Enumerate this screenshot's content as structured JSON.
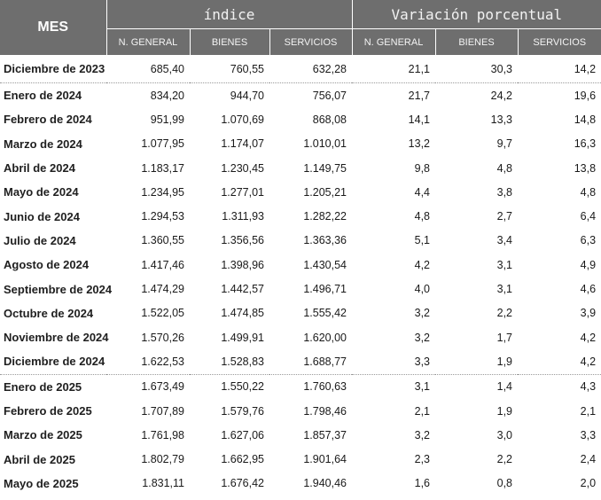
{
  "header": {
    "mes": "MES",
    "group_indice": "índice",
    "group_variacion": "Variación porcentual",
    "sub_indice": [
      "N. GENERAL",
      "BIENES",
      "SERVICIOS"
    ],
    "sub_variacion": [
      "N. GENERAL",
      "BIENES",
      "SERVICIOS"
    ]
  },
  "rows": [
    [
      "Diciembre de 2023",
      "685,40",
      "760,55",
      "632,28",
      "21,1",
      "30,3",
      "14,2"
    ],
    [
      "Enero de 2024",
      "834,20",
      "944,70",
      "756,07",
      "21,7",
      "24,2",
      "19,6"
    ],
    [
      "Febrero de 2024",
      "951,99",
      "1.070,69",
      "868,08",
      "14,1",
      "13,3",
      "14,8"
    ],
    [
      "Marzo de 2024",
      "1.077,95",
      "1.174,07",
      "1.010,01",
      "13,2",
      "9,7",
      "16,3"
    ],
    [
      "Abril de 2024",
      "1.183,17",
      "1.230,45",
      "1.149,75",
      "9,8",
      "4,8",
      "13,8"
    ],
    [
      "Mayo de 2024",
      "1.234,95",
      "1.277,01",
      "1.205,21",
      "4,4",
      "3,8",
      "4,8"
    ],
    [
      "Junio de 2024",
      "1.294,53",
      "1.311,93",
      "1.282,22",
      "4,8",
      "2,7",
      "6,4"
    ],
    [
      "Julio de 2024",
      "1.360,55",
      "1.356,56",
      "1.363,36",
      "5,1",
      "3,4",
      "6,3"
    ],
    [
      "Agosto de 2024",
      "1.417,46",
      "1.398,96",
      "1.430,54",
      "4,2",
      "3,1",
      "4,9"
    ],
    [
      "Septiembre de 2024",
      "1.474,29",
      "1.442,57",
      "1.496,71",
      "4,0",
      "3,1",
      "4,6"
    ],
    [
      "Octubre de 2024",
      "1.522,05",
      "1.474,85",
      "1.555,42",
      "3,2",
      "2,2",
      "3,9"
    ],
    [
      "Noviembre de 2024",
      "1.570,26",
      "1.499,91",
      "1.620,00",
      "3,2",
      "1,7",
      "4,2"
    ],
    [
      "Diciembre de 2024",
      "1.622,53",
      "1.528,83",
      "1.688,77",
      "3,3",
      "1,9",
      "4,2"
    ],
    [
      "Enero  de 2025",
      "1.673,49",
      "1.550,22",
      "1.760,63",
      "3,1",
      "1,4",
      "4,3"
    ],
    [
      "Febrero de 2025",
      "1.707,89",
      "1.579,76",
      "1.798,46",
      "2,1",
      "1,9",
      "2,1"
    ],
    [
      "Marzo de 2025",
      "1.761,98",
      "1.627,06",
      "1.857,37",
      "3,2",
      "3,0",
      "3,3"
    ],
    [
      "Abril de 2025",
      "1.802,79",
      "1.662,95",
      "1.901,64",
      "2,3",
      "2,2",
      "2,4"
    ],
    [
      "Mayo de 2025",
      "1.831,11",
      "1.676,42",
      "1.940,46",
      "1,6",
      "0,8",
      "2,0"
    ]
  ],
  "separator_rows": [
    1,
    13
  ]
}
